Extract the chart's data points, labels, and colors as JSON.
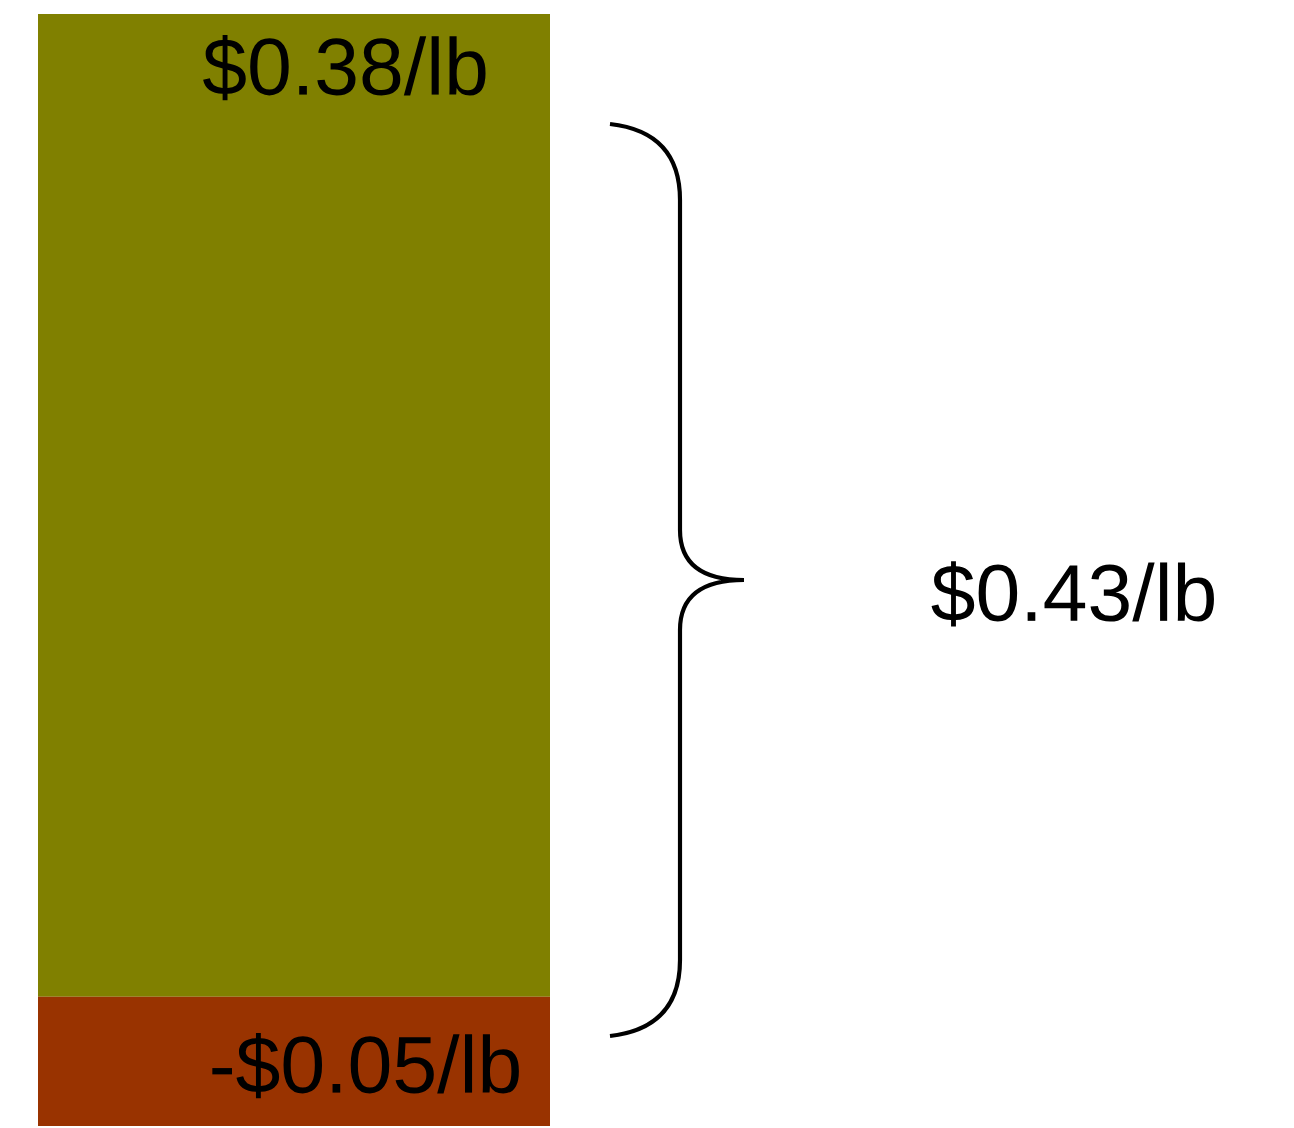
{
  "chart_data": {
    "type": "bar",
    "stacked": true,
    "categories": [
      null
    ],
    "tick_labels": false,
    "grid": false,
    "ylim": [
      -0.05,
      0.38
    ],
    "series": [
      {
        "color": "#808000",
        "values": [
          0.38
        ],
        "value_labels": [
          "$0.38/lb"
        ]
      },
      {
        "color": "#993300",
        "values": [
          -0.05
        ],
        "value_labels": [
          "-$0.05/lb"
        ]
      }
    ],
    "annotations": [
      "$0.43/lb"
    ]
  }
}
